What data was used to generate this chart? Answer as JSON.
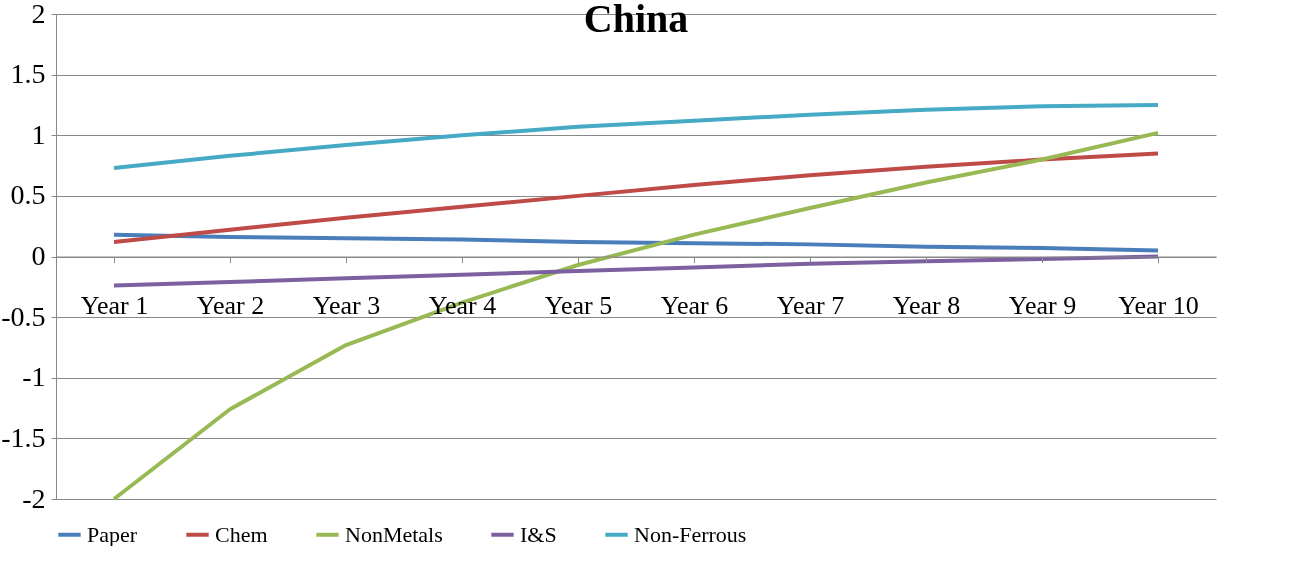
{
  "chart_data": {
    "type": "line",
    "title": "China",
    "categories": [
      "Year 1",
      "Year 2",
      "Year 3",
      "Year 4",
      "Year 5",
      "Year 6",
      "Year 7",
      "Year 8",
      "Year 9",
      "Year 10"
    ],
    "series": [
      {
        "name": "Paper",
        "color": "#4a7ebb",
        "values": [
          0.18,
          0.16,
          0.15,
          0.14,
          0.12,
          0.11,
          0.1,
          0.08,
          0.07,
          0.05
        ]
      },
      {
        "name": "Chem",
        "color": "#be4b48",
        "values": [
          0.12,
          0.22,
          0.32,
          0.41,
          0.5,
          0.59,
          0.67,
          0.74,
          0.8,
          0.85
        ]
      },
      {
        "name": "NonMetals",
        "color": "#98b954",
        "values": [
          -2,
          -1.26,
          -0.73,
          -0.38,
          -0.07,
          0.18,
          0.4,
          0.61,
          0.8,
          1.02
        ]
      },
      {
        "name": "I&S",
        "color": "#7d60a0",
        "values": [
          -0.24,
          -0.21,
          -0.18,
          -0.15,
          -0.12,
          -0.09,
          -0.06,
          -0.04,
          -0.02,
          0
        ]
      },
      {
        "name": "Non-Ferrous",
        "color": "#46aac5",
        "values": [
          0.73,
          0.83,
          0.92,
          1,
          1.07,
          1.12,
          1.17,
          1.21,
          1.24,
          1.25
        ]
      }
    ],
    "ylim": [
      -2,
      2
    ],
    "yticks": [
      -2,
      -1.5,
      -1,
      -0.5,
      0,
      0.5,
      1,
      1.5,
      2
    ],
    "grid": "y",
    "legend": "bottom",
    "marker": "none",
    "line_style": "solid"
  }
}
